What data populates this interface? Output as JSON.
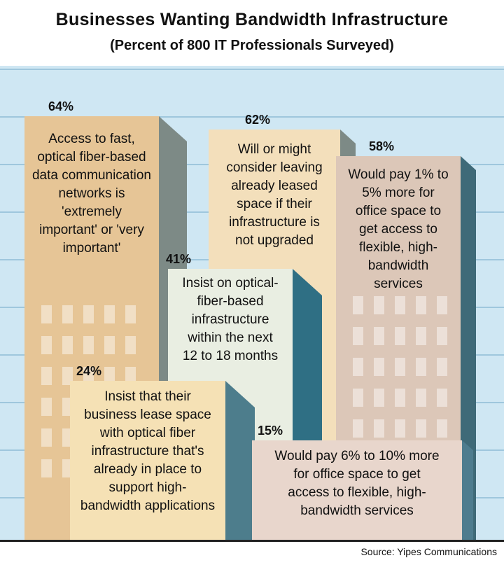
{
  "chart_data": {
    "type": "bar",
    "title": "Businesses Wanting Bandwidth Infrastructure",
    "subtitle": "(Percent of 800 IT Professionals Surveyed)",
    "unit": "%",
    "source": "Source: Yipes Communications",
    "items": [
      {
        "value": 64,
        "value_label": "64%",
        "text": [
          "Access to fast,",
          "optical fiber-based",
          "data communication",
          "networks is",
          "'extremely",
          "important' or 'very",
          "important'"
        ],
        "color": "#e6c596"
      },
      {
        "value": 62,
        "value_label": "62%",
        "text": [
          "Will or might",
          "consider leaving",
          "already leased",
          "space if their",
          "infrastructure is",
          "not upgraded"
        ],
        "color": "#f3dfbb"
      },
      {
        "value": 58,
        "value_label": "58%",
        "text": [
          "Would pay 1% to",
          "5% more for",
          "office space to",
          "get access to",
          "flexible, high-",
          "bandwidth",
          "services"
        ],
        "color": "#dcc7b8"
      },
      {
        "value": 41,
        "value_label": "41%",
        "text": [
          "Insist on optical-",
          "fiber-based",
          "infrastructure",
          "within the next",
          "12 to 18 months"
        ],
        "color": "#e9eee2"
      },
      {
        "value": 24,
        "value_label": "24%",
        "text": [
          "Insist that their",
          "business lease space",
          "with optical fiber",
          "infrastructure that's",
          "already in place to",
          "support high-",
          "bandwidth applications"
        ],
        "color": "#f5e1b5"
      },
      {
        "value": 15,
        "value_label": "15%",
        "text": [
          "Would pay 6% to 10% more",
          "for office space to get",
          "access to flexible, high-",
          "bandwidth services"
        ],
        "color": "#e8d6cc"
      }
    ]
  }
}
